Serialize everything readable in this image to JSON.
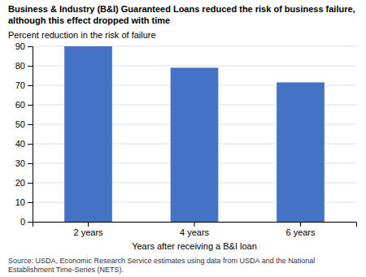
{
  "chart_data": {
    "type": "bar",
    "title": "Business & Industry (B&I) Guaranteed Loans reduced the risk of business failure,\nalthough this effect dropped with time",
    "ylabel": "Percent reduction in the risk of failure",
    "xlabel": "Years after receiving a B&I loan",
    "source": "Source: USDA, Economic Research Service estimates using data from USDA and the National\nEstablishment Time-Series (NETS).",
    "categories": [
      "2 years",
      "4 years",
      "6 years"
    ],
    "values": [
      90,
      79,
      71.5
    ],
    "color": "#4472C4",
    "ylim": [
      0,
      90
    ],
    "yticks": [
      0,
      10,
      20,
      30,
      40,
      50,
      60,
      70,
      80,
      90
    ],
    "grid": true
  }
}
